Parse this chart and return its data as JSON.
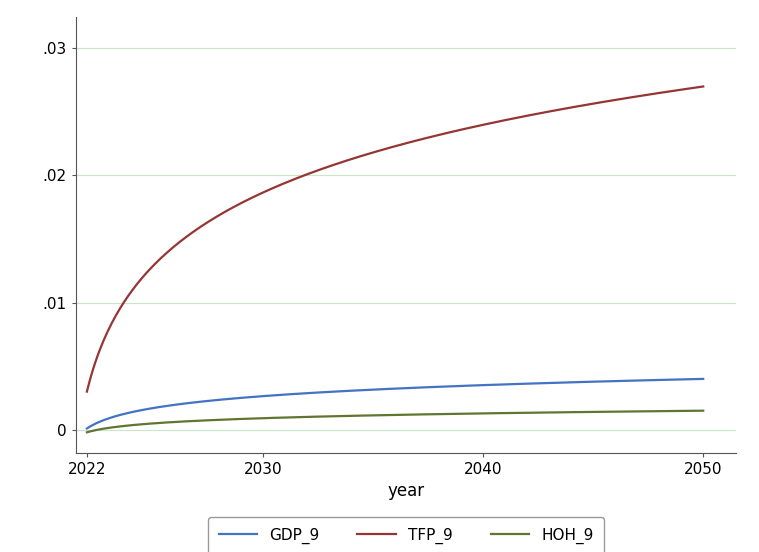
{
  "GDP_color": "#4472C4",
  "TFP_color": "#943634",
  "HOH_color": "#5F7530",
  "xlabel": "year",
  "xlim": [
    2021.5,
    2051.5
  ],
  "xticks": [
    2022,
    2030,
    2040,
    2050
  ],
  "ylim": [
    -0.0018,
    0.0325
  ],
  "yticks": [
    0,
    0.01,
    0.02,
    0.03
  ],
  "ytick_labels": [
    "0",
    ".01",
    ".02",
    ".03"
  ],
  "grid_color": "#c8e6c8",
  "bg_color": "#ffffff",
  "linewidth": 1.6,
  "legend_labels": [
    "GDP_9",
    "TFP_9",
    "HOH_9"
  ]
}
